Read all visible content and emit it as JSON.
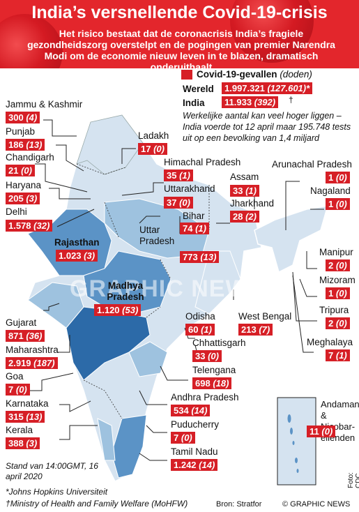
{
  "header": {
    "title": "India’s versnellende Covid-19-crisis",
    "subtitle": "Het risico bestaat dat de coronacrisis India’s fragiele gezondheidszorg overstelpt en de pogingen van premier Narendra Modi om de economie nieuw leven in te blazen, dramatisch onderuithaalt"
  },
  "legend": {
    "title": "Covid-19-gevallen",
    "deaths_note": "(doden)",
    "world_label": "Wereld",
    "world_value": "1.997.321",
    "world_deaths": "(127.601)*",
    "india_label": "India",
    "india_value": "11.933",
    "india_deaths": "(392)",
    "india_mark": "†",
    "note": "Werkelijke aantal kan veel hoger liggen – India voerde tot 12 april maar 195.748 tests uit op een bevolking van 1,4 miljard"
  },
  "states": [
    {
      "name": "Jammu & Kashmir",
      "cases": "300",
      "deaths": "(4)"
    },
    {
      "name": "Punjab",
      "cases": "186",
      "deaths": "(13)"
    },
    {
      "name": "Chandigarh",
      "cases": "21",
      "deaths": "(0)"
    },
    {
      "name": "Haryana",
      "cases": "205",
      "deaths": "(3)"
    },
    {
      "name": "Delhi",
      "cases": "1.578",
      "deaths": "(32)"
    },
    {
      "name": "Rajasthan",
      "cases": "1.023",
      "deaths": "(3)"
    },
    {
      "name": "Gujarat",
      "cases": "871",
      "deaths": "(36)"
    },
    {
      "name": "Maharashtra",
      "cases": "2.919",
      "deaths": "(187)"
    },
    {
      "name": "Goa",
      "cases": "7",
      "deaths": "(0)"
    },
    {
      "name": "Karnataka",
      "cases": "315",
      "deaths": "(13)"
    },
    {
      "name": "Kerala",
      "cases": "388",
      "deaths": "(3)"
    },
    {
      "name": "Ladakh",
      "cases": "17",
      "deaths": "(0)"
    },
    {
      "name": "Himachal Pradesh",
      "cases": "35",
      "deaths": "(1)"
    },
    {
      "name": "Uttarakhand",
      "cases": "37",
      "deaths": "(0)"
    },
    {
      "name": "Bihar",
      "cases": "74",
      "deaths": "(1)"
    },
    {
      "name": "Uttar Pradesh",
      "cases": "773",
      "deaths": "(13)"
    },
    {
      "name": "Madhya Pradesh",
      "cases": "1.120",
      "deaths": "(53)"
    },
    {
      "name": "Assam",
      "cases": "33",
      "deaths": "(1)"
    },
    {
      "name": "Jharkhand",
      "cases": "28",
      "deaths": "(2)"
    },
    {
      "name": "Arunachal Pradesh",
      "cases": "1",
      "deaths": "(0)"
    },
    {
      "name": "Nagaland",
      "cases": "1",
      "deaths": "(0)"
    },
    {
      "name": "Manipur",
      "cases": "2",
      "deaths": "(0)"
    },
    {
      "name": "Mizoram",
      "cases": "1",
      "deaths": "(0)"
    },
    {
      "name": "Tripura",
      "cases": "2",
      "deaths": "(0)"
    },
    {
      "name": "Meghalaya",
      "cases": "7",
      "deaths": "(1)"
    },
    {
      "name": "Odisha",
      "cases": "60",
      "deaths": "(1)"
    },
    {
      "name": "West Bengal",
      "cases": "213",
      "deaths": "(7)"
    },
    {
      "name": "Chhattisgarh",
      "cases": "33",
      "deaths": "(0)"
    },
    {
      "name": "Telengana",
      "cases": "698",
      "deaths": "(18)"
    },
    {
      "name": "Andhra Pradesh",
      "cases": "534",
      "deaths": "(14)"
    },
    {
      "name": "Puducherry",
      "cases": "7",
      "deaths": "(0)"
    },
    {
      "name": "Tamil Nadu",
      "cases": "1.242",
      "deaths": "(14)"
    },
    {
      "name": "Andaman- & Nicobar- eilenden",
      "cases": "11",
      "deaths": "(0)"
    }
  ],
  "footer": {
    "stand": "Stand van 14:00GMT, 16 april 2020",
    "jhu": "*Johns Hopkins Universiteit",
    "dagger": "†",
    "ministry": "Ministry of Health and Family Welfare (MoHFW)",
    "source": "Bron: Stratfor",
    "credit": "© GRAPHIC NEWS",
    "photo": "Foto: CDC"
  },
  "watermark": "GRAPHIC NEWS",
  "colors": {
    "red": "#d61f26",
    "header": "#e3262c",
    "map_light": "#d5e3f0",
    "map_mid": "#9ec2df",
    "map_dark": "#5b93c6",
    "map_darkest": "#2c6aa8"
  }
}
